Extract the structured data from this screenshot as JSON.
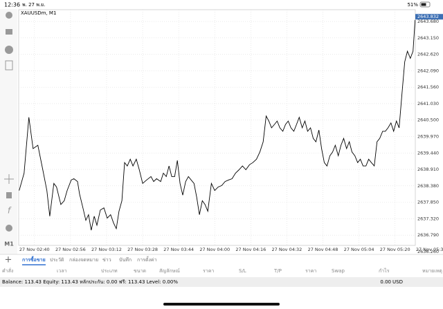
{
  "status_bar": {
    "time": "12:36",
    "date": "พ. 27 พ.ย.",
    "battery": "51%"
  },
  "toolbar": {
    "timeframe": "M1"
  },
  "chart_data": {
    "type": "line",
    "title": "XAUUSDm, M1",
    "color": "#000000",
    "grid": true,
    "current_price": 2643.832,
    "xlim": [
      -7,
      169
    ],
    "ylim": [
      2636.46,
      2644.06
    ],
    "xticks": [
      {
        "value": 0,
        "label": "27 Nov 02:40"
      },
      {
        "value": 16,
        "label": "27 Nov 02:56"
      },
      {
        "value": 32,
        "label": "27 Nov 03:12"
      },
      {
        "value": 48,
        "label": "27 Nov 03:28"
      },
      {
        "value": 64,
        "label": "27 Nov 03:44"
      },
      {
        "value": 80,
        "label": "27 Nov 04:00"
      },
      {
        "value": 96,
        "label": "27 Nov 04:16"
      },
      {
        "value": 112,
        "label": "27 Nov 04:32"
      },
      {
        "value": 128,
        "label": "27 Nov 04:48"
      },
      {
        "value": 144,
        "label": "27 Nov 05:04"
      },
      {
        "value": 160,
        "label": "27 Nov 05:20"
      },
      {
        "value": 176,
        "label": "27 Nov 05:36"
      }
    ],
    "yticks": [
      {
        "value": 2636.26,
        "label": "2636.260"
      },
      {
        "value": 2636.79,
        "label": "2636.790"
      },
      {
        "value": 2637.32,
        "label": "2637.320"
      },
      {
        "value": 2637.85,
        "label": "2637.850"
      },
      {
        "value": 2638.38,
        "label": "2638.380"
      },
      {
        "value": 2638.91,
        "label": "2638.910"
      },
      {
        "value": 2639.44,
        "label": "2639.440"
      },
      {
        "value": 2639.97,
        "label": "2639.970"
      },
      {
        "value": 2640.5,
        "label": "2640.500"
      },
      {
        "value": 2641.03,
        "label": "2641.030"
      },
      {
        "value": 2641.56,
        "label": "2641.560"
      },
      {
        "value": 2642.09,
        "label": "2642.090"
      },
      {
        "value": 2642.62,
        "label": "2642.620"
      },
      {
        "value": 2643.15,
        "label": "2643.150"
      },
      {
        "value": 2643.68,
        "label": "2643.680"
      }
    ],
    "x": [
      -6.8,
      -4.6,
      -2.5,
      -0.6,
      1.5,
      3.7,
      5.5,
      6.8,
      8.6,
      9.8,
      11.7,
      13.2,
      14.5,
      16.3,
      17.5,
      19.1,
      20.0,
      21.5,
      22.8,
      24.0,
      25.2,
      26.5,
      27.7,
      29.2,
      30.8,
      32.3,
      33.8,
      35.1,
      36.3,
      37.5,
      38.8,
      40.0,
      41.2,
      42.5,
      43.7,
      45.2,
      46.5,
      48.0,
      49.8,
      51.7,
      52.9,
      54.2,
      56.0,
      57.2,
      58.5,
      59.7,
      60.9,
      62.2,
      63.4,
      64.6,
      65.8,
      67.1,
      68.3,
      69.5,
      70.8,
      72.0,
      73.2,
      74.5,
      75.7,
      76.9,
      78.5,
      80.0,
      81.5,
      83.1,
      84.6,
      86.2,
      87.7,
      89.2,
      90.8,
      92.3,
      93.8,
      95.4,
      96.9,
      98.5,
      100.0,
      101.5,
      102.8,
      104.0,
      105.2,
      106.5,
      107.7,
      108.9,
      110.2,
      111.4,
      112.6,
      113.8,
      115.1,
      116.3,
      117.5,
      118.8,
      120.0,
      121.2,
      122.5,
      123.7,
      124.9,
      126.2,
      127.4,
      128.6,
      129.8,
      131.1,
      132.3,
      133.5,
      134.8,
      136.0,
      137.2,
      138.5,
      139.7,
      140.9,
      142.2,
      143.4,
      144.6,
      145.8,
      147.1,
      148.3,
      149.5,
      150.8,
      152.0,
      153.2,
      154.5,
      155.7,
      156.9,
      158.2,
      159.4,
      160.6,
      161.8,
      163.1,
      164.3,
      165.5,
      166.8,
      168.0,
      168.9
    ],
    "values": [
      2638.23,
      2638.79,
      2640.59,
      2639.58,
      2639.69,
      2638.9,
      2638.23,
      2637.4,
      2638.46,
      2638.34,
      2637.78,
      2637.9,
      2638.23,
      2638.57,
      2638.61,
      2638.52,
      2638.12,
      2637.67,
      2637.27,
      2637.45,
      2636.95,
      2637.4,
      2637.11,
      2637.6,
      2637.67,
      2637.34,
      2637.45,
      2637.18,
      2637.0,
      2637.56,
      2637.9,
      2639.13,
      2639.02,
      2639.24,
      2639.02,
      2639.24,
      2638.9,
      2638.46,
      2638.57,
      2638.68,
      2638.52,
      2638.61,
      2638.52,
      2638.79,
      2638.68,
      2639.02,
      2638.68,
      2638.68,
      2639.2,
      2638.46,
      2638.08,
      2638.52,
      2638.68,
      2638.57,
      2638.46,
      2638.01,
      2637.45,
      2637.9,
      2637.78,
      2637.56,
      2638.46,
      2638.23,
      2638.34,
      2638.39,
      2638.52,
      2638.57,
      2638.61,
      2638.79,
      2638.9,
      2639.02,
      2638.9,
      2639.06,
      2639.13,
      2639.24,
      2639.47,
      2639.8,
      2640.63,
      2640.47,
      2640.25,
      2640.36,
      2640.47,
      2640.25,
      2640.14,
      2640.36,
      2640.47,
      2640.25,
      2640.14,
      2640.36,
      2640.59,
      2640.25,
      2640.47,
      2640.14,
      2640.25,
      2639.91,
      2639.8,
      2640.18,
      2639.58,
      2639.13,
      2639.02,
      2639.35,
      2639.47,
      2639.69,
      2639.35,
      2639.69,
      2639.91,
      2639.58,
      2639.8,
      2639.47,
      2639.35,
      2639.13,
      2639.24,
      2639.02,
      2639.02,
      2639.24,
      2639.13,
      2639.02,
      2639.8,
      2639.91,
      2640.14,
      2640.14,
      2640.25,
      2640.41,
      2640.14,
      2640.47,
      2640.25,
      2641.37,
      2642.38,
      2642.72,
      2642.49,
      2642.72,
      2643.73
    ]
  },
  "tabs": [
    "การซื้อขาย",
    "ประวัติ",
    "กล่องจดหมาย",
    "ข่าว",
    "บันทึก",
    "การตั้งค่า"
  ],
  "table_headers": [
    "คำสั่ง",
    "เวลา",
    "ประเภท",
    "ขนาด",
    "สัญลักษณ์",
    "ราคา",
    "S/L",
    "T/P",
    "ราคา",
    "Swap",
    "กำไร",
    "หมายเหตุ"
  ],
  "balance": {
    "summary": "Balance: 113.43 Equity: 113.43 หลักประกัน: 0.00 ฟรี: 113.43 Level: 0.00%",
    "profit": "0.00",
    "currency": "USD"
  }
}
